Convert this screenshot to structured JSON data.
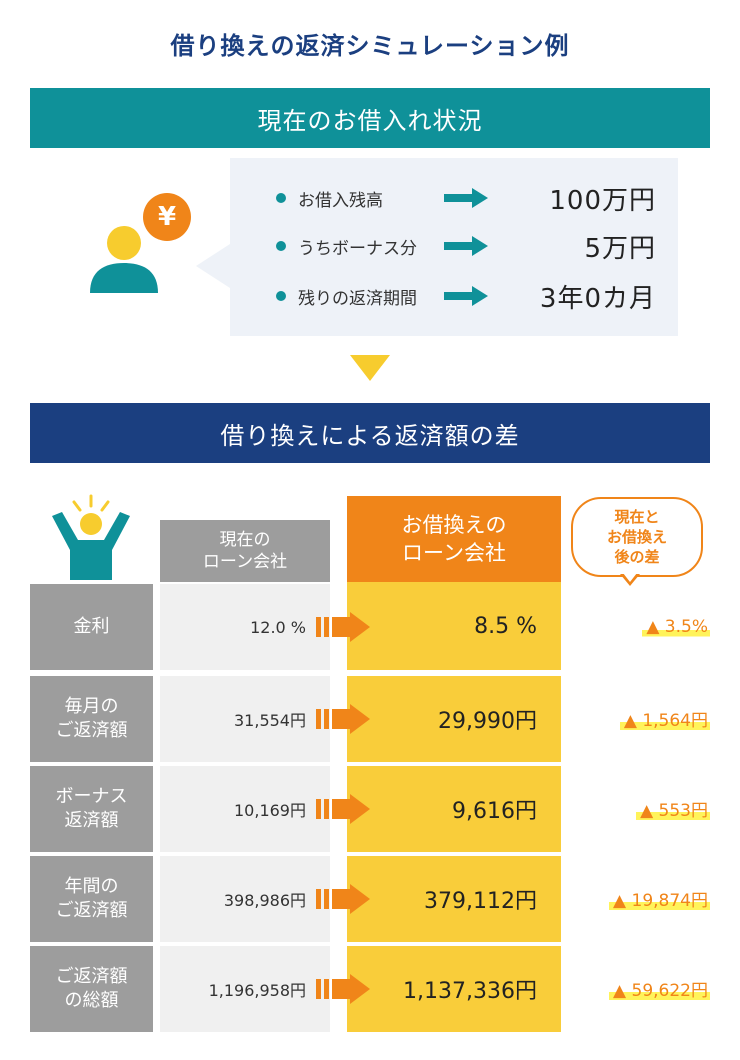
{
  "page_title": "借り換えの返済シミュレーション例",
  "section_current": {
    "heading": "現在のお借入れ状況",
    "yen_symbol": "¥",
    "items": [
      {
        "label": "お借入残高",
        "value": "100万円"
      },
      {
        "label": "うちボーナス分",
        "value": "5万円"
      },
      {
        "label": "残りの返済期間",
        "value": "3年0カ月"
      }
    ]
  },
  "section_diff": {
    "heading": "借り換えによる返済額の差",
    "col_current": [
      "現在の",
      "ローン会社"
    ],
    "col_new": [
      "お借換えの",
      "ローン会社"
    ],
    "col_diff": [
      "現在と",
      "お借換え",
      "後の差"
    ],
    "rows": [
      {
        "label": [
          "金利"
        ],
        "current": "12.0 %",
        "new": "8.5 %",
        "diff": "▲ 3.5%"
      },
      {
        "label": [
          "毎月の",
          "ご返済額"
        ],
        "current": "31,554円",
        "new": "29,990円",
        "diff": "▲ 1,564円"
      },
      {
        "label": [
          "ボーナス",
          "返済額"
        ],
        "current": "10,169円",
        "new": "9,616円",
        "diff": "▲ 553円"
      },
      {
        "label": [
          "年間の",
          "ご返済額"
        ],
        "current": "398,986円",
        "new": "379,112円",
        "diff": "▲ 19,874円"
      },
      {
        "label": [
          "ご返済額",
          "の総額"
        ],
        "current": "1,196,958円",
        "new": "1,137,336円",
        "diff": "▲ 59,622円"
      }
    ]
  },
  "colors": {
    "teal": "#0f9199",
    "navy": "#1b3f80",
    "orange": "#f08519",
    "yellow": "#f9cd3a",
    "gray": "#9d9d9d",
    "highlight": "#fff35a"
  },
  "icons": [
    "person-icon",
    "yen-coin-icon",
    "arrow-right-icon",
    "celebrating-person-icon",
    "down-triangle-icon"
  ]
}
